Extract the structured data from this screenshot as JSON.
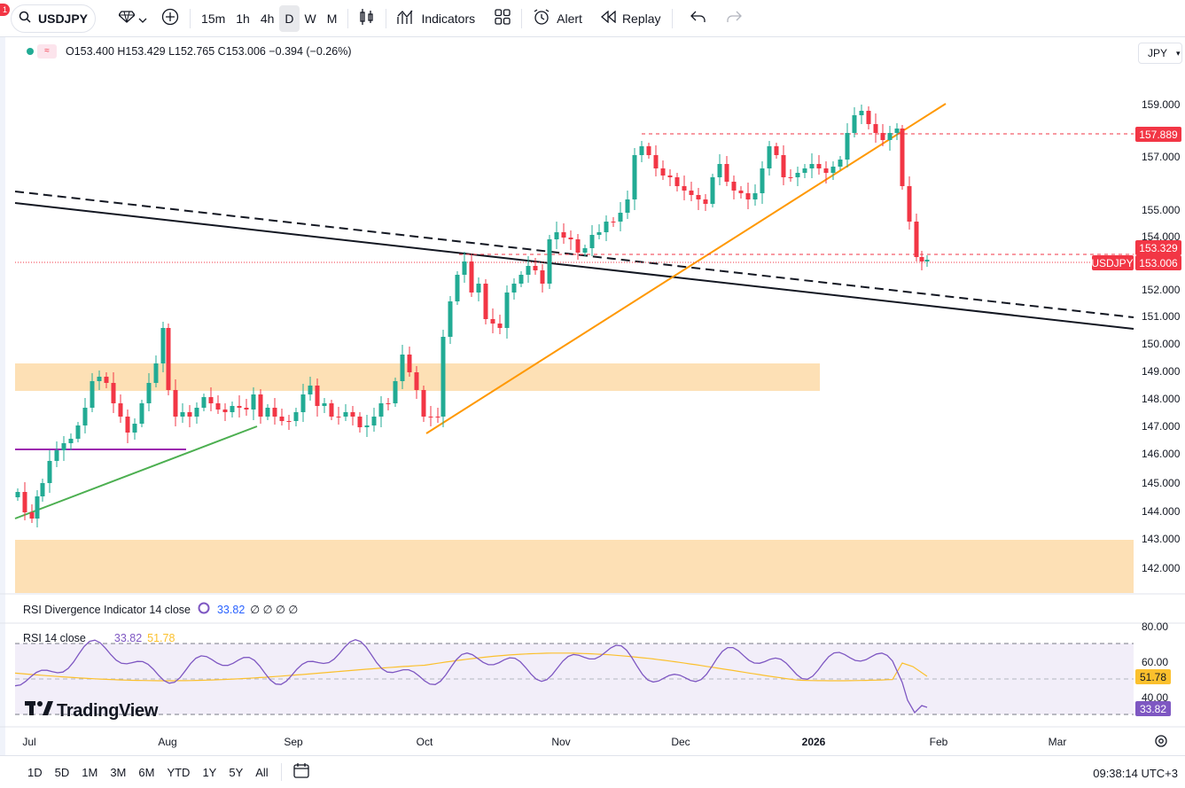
{
  "toolbar": {
    "notification_count": "1",
    "symbol": "USDJPY",
    "timeframes": [
      "15m",
      "1h",
      "4h",
      "D",
      "W",
      "M"
    ],
    "active_timeframe": "D",
    "indicators_label": "Indicators",
    "alert_label": "Alert",
    "replay_label": "Replay"
  },
  "legend": {
    "ohlc": "O153.400  H153.429  L152.765  C153.006  −0.394 (−0.26%)",
    "currency": "JPY"
  },
  "rsi_div": {
    "label": "RSI Divergence Indicator 14 close",
    "value": "33.82",
    "extras": "∅ ∅ ∅ ∅"
  },
  "rsi": {
    "label": "RSI 14 close",
    "value": "33.82",
    "ma_value": "51.78",
    "axis": [
      "80.00",
      "60.00",
      "40.00"
    ],
    "last_label": "33.82",
    "ma_last_label": "51.78"
  },
  "price_axis": {
    "ticks": [
      "159.000",
      "157.000",
      "155.000",
      "154.000",
      "152.000",
      "151.000",
      "150.000",
      "149.000",
      "148.000",
      "147.000",
      "146.000",
      "145.000",
      "144.000",
      "143.000",
      "142.000"
    ],
    "labels": {
      "resistance": "157.889",
      "level": "153.329",
      "symbol": "USDJPY",
      "last": "153.006"
    }
  },
  "time_axis": [
    "Jul",
    "Aug",
    "Sep",
    "Oct",
    "Nov",
    "Dec",
    "2026",
    "Feb",
    "Mar"
  ],
  "bottom": {
    "ranges": [
      "1D",
      "5D",
      "1M",
      "3M",
      "6M",
      "YTD",
      "1Y",
      "5Y",
      "All"
    ],
    "clock": "09:38:14 UTC+3"
  },
  "brand": "TradingView",
  "colors": {
    "up": "#22ab94",
    "down": "#f23645",
    "rsi_line": "#7e57c2",
    "rsi_ma": "#fbc02d",
    "zone": "#fde0b5",
    "trend_orange": "#ff9800",
    "trend_green": "#4caf50",
    "level_purple": "#9c27b0"
  },
  "chart_data": {
    "type": "candlestick",
    "symbol": "USDJPY",
    "interval": "D",
    "last_close": 153.006,
    "horizontal_levels": [
      157.889,
      153.329,
      153.006
    ],
    "rsi_last": 33.82,
    "rsi_ma_last": 51.78
  }
}
